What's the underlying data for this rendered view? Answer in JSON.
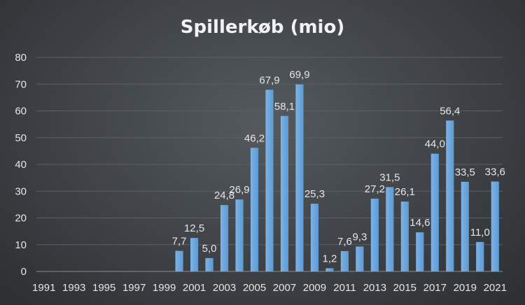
{
  "colors": {
    "bar": "#5b9bd5",
    "bar_light": "#7fb2e3",
    "text": "#e6e6e6"
  },
  "chart_data": {
    "type": "bar",
    "title": "Spillerkøb (mio)",
    "xlabel": "",
    "ylabel": "",
    "ylim": [
      0,
      80
    ],
    "yticks": [
      "0",
      "10",
      "20",
      "30",
      "40",
      "50",
      "60",
      "70",
      "80"
    ],
    "grid": true,
    "legend": "none",
    "categories": [
      "1991",
      "1992",
      "1993",
      "1994",
      "1995",
      "1996",
      "1997",
      "1998",
      "1999",
      "2000",
      "2001",
      "2002",
      "2003",
      "2004",
      "2005",
      "2006",
      "2007",
      "2008",
      "2009",
      "2010",
      "2011",
      "2012",
      "2013",
      "2014",
      "2015",
      "2016",
      "2017",
      "2018",
      "2019",
      "2020",
      "2021"
    ],
    "xtick_labels": [
      "1991",
      "1993",
      "1995",
      "1997",
      "1999",
      "2001",
      "2003",
      "2005",
      "2007",
      "2009",
      "2011",
      "2013",
      "2015",
      "2017",
      "2019",
      "2021"
    ],
    "values": [
      null,
      null,
      null,
      null,
      null,
      null,
      null,
      null,
      null,
      7.7,
      12.5,
      5.0,
      24.8,
      26.9,
      46.2,
      67.9,
      58.1,
      69.9,
      25.3,
      1.2,
      7.6,
      9.3,
      27.2,
      31.5,
      26.1,
      14.6,
      44.0,
      56.4,
      33.5,
      11.0,
      33.6
    ],
    "data_labels": [
      "",
      "",
      "",
      "",
      "",
      "",
      "",
      "",
      "",
      "7,7",
      "12,5",
      "5,0",
      "24,8",
      "26,9",
      "46,2",
      "67,9",
      "58,1",
      "69,9",
      "25,3",
      "1,2",
      "7,6",
      "9,3",
      "27,2",
      "31,5",
      "26,1",
      "14,6",
      "44,0",
      "56,4",
      "33,5",
      "11,0",
      "33,6"
    ]
  }
}
